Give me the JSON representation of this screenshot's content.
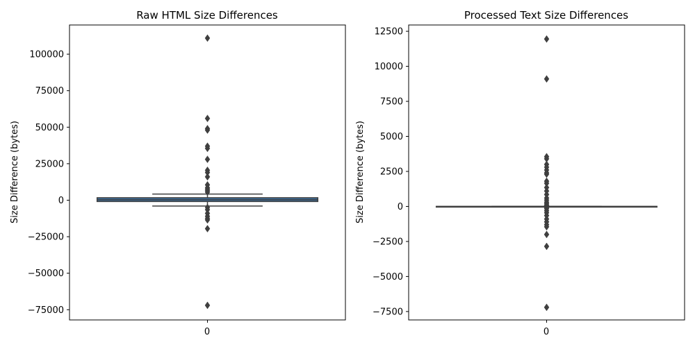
{
  "chart_data": [
    {
      "type": "box",
      "title": "Raw HTML Size Differences",
      "xlabel": "",
      "ylabel": "Size Difference (bytes)",
      "categories": [
        "0"
      ],
      "ylim": [
        -82000,
        120000
      ],
      "yticks": [
        -75000,
        -50000,
        -25000,
        0,
        25000,
        50000,
        75000,
        100000
      ],
      "ytick_labels": [
        "−75000",
        "−50000",
        "−25000",
        "0",
        "25000",
        "50000",
        "75000",
        "100000"
      ],
      "box": {
        "whisker_low": -4000,
        "q1": -900,
        "median": 300,
        "q3": 1700,
        "whisker_high": 4200
      },
      "outliers": [
        111000,
        56000,
        49000,
        48000,
        37000,
        35500,
        28000,
        20500,
        19000,
        16000,
        10500,
        8500,
        7500,
        6500,
        5500,
        -5000,
        -6500,
        -9000,
        -11000,
        -12500,
        -13500,
        -19500,
        -72000
      ],
      "colors": {
        "box": "#3b6e9e",
        "lines": "#3f3f3f"
      }
    },
    {
      "type": "box",
      "title": "Processed Text Size Differences",
      "xlabel": "",
      "ylabel": "Size Difference (bytes)",
      "categories": [
        "0"
      ],
      "ylim": [
        -8100,
        12950
      ],
      "yticks": [
        -7500,
        -5000,
        -2500,
        0,
        2500,
        5000,
        7500,
        10000,
        12500
      ],
      "ytick_labels": [
        "−7500",
        "−5000",
        "−2500",
        "0",
        "2500",
        "5000",
        "7500",
        "10000",
        "12500"
      ],
      "box": {
        "whisker_low": -10,
        "q1": -4,
        "median": 0,
        "q3": 4,
        "whisker_high": 10
      },
      "outliers": [
        11950,
        9100,
        3550,
        3400,
        3000,
        2800,
        2600,
        2400,
        2300,
        1800,
        1650,
        1350,
        1100,
        850,
        600,
        450,
        300,
        200,
        100,
        60,
        -80,
        -150,
        -300,
        -450,
        -650,
        -900,
        -1100,
        -1300,
        -1450,
        -2000,
        -2850,
        -7200
      ],
      "colors": {
        "box": "#3b6e9e",
        "lines": "#3f3f3f"
      }
    }
  ]
}
